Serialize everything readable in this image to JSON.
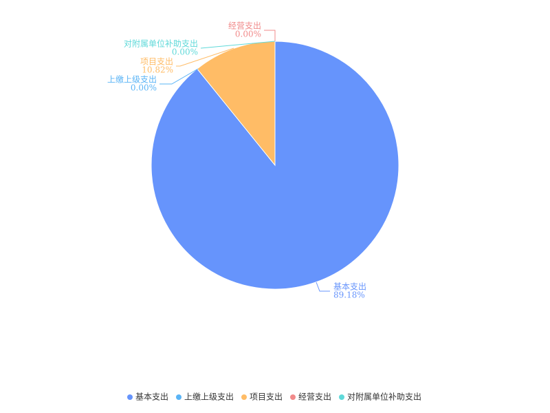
{
  "chart_data": {
    "type": "pie",
    "categories": [
      "基本支出",
      "上缴上级支出",
      "项目支出",
      "经营支出",
      "对附属单位补助支出"
    ],
    "values": [
      89.18,
      0.0,
      10.82,
      0.0,
      0.0
    ],
    "value_labels": [
      "89.18%",
      "0.00%",
      "10.82%",
      "0.00%",
      "0.00%"
    ],
    "colors": [
      "#6694fc",
      "#5ab4f6",
      "#ffbc66",
      "#f18a8a",
      "#5fd9d9"
    ],
    "legend": "bottom"
  }
}
